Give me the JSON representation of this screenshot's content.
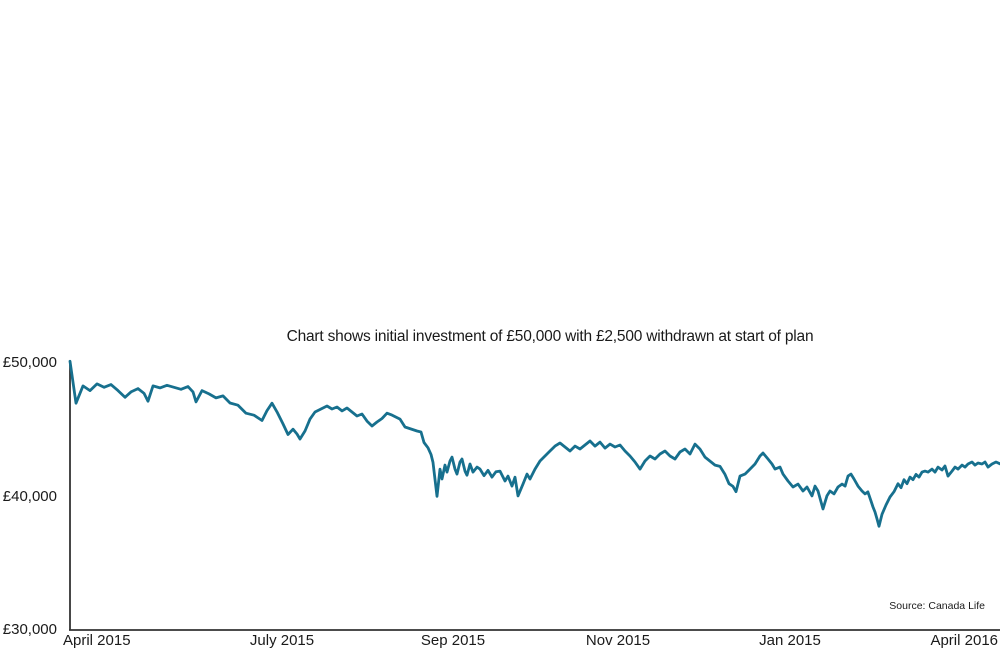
{
  "chart_data": {
    "type": "line",
    "title": "Chart shows initial investment of £50,000 with £2,500 withdrawn at start of plan",
    "source": "Source: Canada Life",
    "x_ticks": [
      "April 2015",
      "July 2015",
      "Sep 2015",
      "Nov 2015",
      "Jan 2015",
      "April 2016"
    ],
    "y_ticks": [
      "£50,000",
      "£40,000",
      "£30,000"
    ],
    "y_tick_values": [
      50000,
      40000,
      30000
    ],
    "ylim": [
      30000,
      50000
    ],
    "x_range": [
      "April 2015",
      "April 2016"
    ],
    "grid": false,
    "legend": "none",
    "line_color": "#17708e",
    "axis_color": "#333333",
    "text_color": "#1a1a1a",
    "series": [
      {
        "points": [
          [
            0.0,
            50200
          ],
          [
            0.0065,
            47050
          ],
          [
            0.014,
            48350
          ],
          [
            0.0215,
            48000
          ],
          [
            0.029,
            48500
          ],
          [
            0.0366,
            48250
          ],
          [
            0.0441,
            48450
          ],
          [
            0.0516,
            48000
          ],
          [
            0.0591,
            47500
          ],
          [
            0.0656,
            47900
          ],
          [
            0.0731,
            48150
          ],
          [
            0.0796,
            47800
          ],
          [
            0.0839,
            47200
          ],
          [
            0.0892,
            48350
          ],
          [
            0.0968,
            48200
          ],
          [
            0.1043,
            48400
          ],
          [
            0.1118,
            48250
          ],
          [
            0.1194,
            48100
          ],
          [
            0.1269,
            48300
          ],
          [
            0.1323,
            47900
          ],
          [
            0.1355,
            47150
          ],
          [
            0.1419,
            48000
          ],
          [
            0.1495,
            47750
          ],
          [
            0.157,
            47450
          ],
          [
            0.1645,
            47600
          ],
          [
            0.172,
            47070
          ],
          [
            0.1806,
            46900
          ],
          [
            0.1892,
            46300
          ],
          [
            0.1978,
            46150
          ],
          [
            0.2065,
            45750
          ],
          [
            0.2118,
            46500
          ],
          [
            0.2172,
            47050
          ],
          [
            0.2226,
            46400
          ],
          [
            0.229,
            45500
          ],
          [
            0.2344,
            44700
          ],
          [
            0.2398,
            45100
          ],
          [
            0.2441,
            44740
          ],
          [
            0.2473,
            44360
          ],
          [
            0.2527,
            44960
          ],
          [
            0.2581,
            45860
          ],
          [
            0.2634,
            46390
          ],
          [
            0.2699,
            46620
          ],
          [
            0.2763,
            46840
          ],
          [
            0.2817,
            46620
          ],
          [
            0.2871,
            46770
          ],
          [
            0.2925,
            46470
          ],
          [
            0.2978,
            46690
          ],
          [
            0.3032,
            46390
          ],
          [
            0.3086,
            46090
          ],
          [
            0.314,
            46240
          ],
          [
            0.3194,
            45710
          ],
          [
            0.3247,
            45340
          ],
          [
            0.3301,
            45640
          ],
          [
            0.3355,
            45900
          ],
          [
            0.3409,
            46300
          ],
          [
            0.3462,
            46160
          ],
          [
            0.3505,
            46010
          ],
          [
            0.3548,
            45860
          ],
          [
            0.3602,
            45260
          ],
          [
            0.3667,
            45110
          ],
          [
            0.3731,
            44960
          ],
          [
            0.3774,
            44890
          ],
          [
            0.3806,
            44100
          ],
          [
            0.3849,
            43700
          ],
          [
            0.3882,
            43200
          ],
          [
            0.3903,
            42600
          ],
          [
            0.3946,
            40050
          ],
          [
            0.3978,
            42100
          ],
          [
            0.4,
            41350
          ],
          [
            0.4032,
            42400
          ],
          [
            0.4054,
            41870
          ],
          [
            0.4086,
            42710
          ],
          [
            0.4108,
            43000
          ],
          [
            0.414,
            42100
          ],
          [
            0.4161,
            41720
          ],
          [
            0.4194,
            42630
          ],
          [
            0.4215,
            42860
          ],
          [
            0.4247,
            41950
          ],
          [
            0.4269,
            41640
          ],
          [
            0.4301,
            42480
          ],
          [
            0.4333,
            41870
          ],
          [
            0.4376,
            42250
          ],
          [
            0.4409,
            42100
          ],
          [
            0.4452,
            41600
          ],
          [
            0.4495,
            42000
          ],
          [
            0.4538,
            41500
          ],
          [
            0.4581,
            41900
          ],
          [
            0.4624,
            41950
          ],
          [
            0.4677,
            41200
          ],
          [
            0.471,
            41570
          ],
          [
            0.4753,
            40820
          ],
          [
            0.4785,
            41490
          ],
          [
            0.4817,
            40080
          ],
          [
            0.4871,
            40970
          ],
          [
            0.4914,
            41720
          ],
          [
            0.4946,
            41350
          ],
          [
            0.5,
            42100
          ],
          [
            0.5054,
            42710
          ],
          [
            0.5108,
            43080
          ],
          [
            0.5161,
            43460
          ],
          [
            0.5215,
            43830
          ],
          [
            0.5269,
            44060
          ],
          [
            0.5323,
            43760
          ],
          [
            0.5376,
            43460
          ],
          [
            0.543,
            43830
          ],
          [
            0.5484,
            43610
          ],
          [
            0.5538,
            43910
          ],
          [
            0.5591,
            44210
          ],
          [
            0.5645,
            43830
          ],
          [
            0.5699,
            44130
          ],
          [
            0.5753,
            43680
          ],
          [
            0.5806,
            43980
          ],
          [
            0.586,
            43760
          ],
          [
            0.5914,
            43910
          ],
          [
            0.5968,
            43460
          ],
          [
            0.6022,
            43080
          ],
          [
            0.6075,
            42630
          ],
          [
            0.6129,
            42100
          ],
          [
            0.6183,
            42710
          ],
          [
            0.6237,
            43080
          ],
          [
            0.629,
            42860
          ],
          [
            0.6344,
            43230
          ],
          [
            0.6398,
            43460
          ],
          [
            0.6452,
            43080
          ],
          [
            0.6505,
            42860
          ],
          [
            0.6559,
            43380
          ],
          [
            0.6613,
            43610
          ],
          [
            0.6667,
            43230
          ],
          [
            0.672,
            43980
          ],
          [
            0.6774,
            43600
          ],
          [
            0.6828,
            43000
          ],
          [
            0.6882,
            42700
          ],
          [
            0.6935,
            42400
          ],
          [
            0.6989,
            42300
          ],
          [
            0.7043,
            41700
          ],
          [
            0.7086,
            41000
          ],
          [
            0.7129,
            40800
          ],
          [
            0.7161,
            40400
          ],
          [
            0.7204,
            41570
          ],
          [
            0.7258,
            41720
          ],
          [
            0.7312,
            42100
          ],
          [
            0.7366,
            42480
          ],
          [
            0.7419,
            43080
          ],
          [
            0.7452,
            43310
          ],
          [
            0.7505,
            42860
          ],
          [
            0.7548,
            42480
          ],
          [
            0.7581,
            42100
          ],
          [
            0.7634,
            42250
          ],
          [
            0.7667,
            41720
          ],
          [
            0.772,
            41200
          ],
          [
            0.7774,
            40750
          ],
          [
            0.7828,
            40970
          ],
          [
            0.7882,
            40450
          ],
          [
            0.7925,
            40750
          ],
          [
            0.7978,
            40080
          ],
          [
            0.8011,
            40820
          ],
          [
            0.8043,
            40450
          ],
          [
            0.8097,
            39100
          ],
          [
            0.814,
            40100
          ],
          [
            0.8172,
            40450
          ],
          [
            0.8215,
            40230
          ],
          [
            0.8258,
            40750
          ],
          [
            0.8301,
            40970
          ],
          [
            0.8334,
            40820
          ],
          [
            0.8366,
            41570
          ],
          [
            0.8398,
            41720
          ],
          [
            0.843,
            41350
          ],
          [
            0.8473,
            40820
          ],
          [
            0.8516,
            40450
          ],
          [
            0.8548,
            40230
          ],
          [
            0.858,
            40380
          ],
          [
            0.8613,
            39700
          ],
          [
            0.8634,
            39250
          ],
          [
            0.8656,
            38870
          ],
          [
            0.8677,
            38350
          ],
          [
            0.8699,
            37800
          ],
          [
            0.8731,
            38700
          ],
          [
            0.8774,
            39400
          ],
          [
            0.8817,
            40000
          ],
          [
            0.886,
            40400
          ],
          [
            0.8903,
            41000
          ],
          [
            0.8935,
            40700
          ],
          [
            0.8968,
            41300
          ],
          [
            0.9,
            41000
          ],
          [
            0.9032,
            41500
          ],
          [
            0.9065,
            41300
          ],
          [
            0.9097,
            41700
          ],
          [
            0.9129,
            41500
          ],
          [
            0.9161,
            41870
          ],
          [
            0.9194,
            41950
          ],
          [
            0.9226,
            41870
          ],
          [
            0.9269,
            42100
          ],
          [
            0.9301,
            41870
          ],
          [
            0.9333,
            42250
          ],
          [
            0.9376,
            42030
          ],
          [
            0.9409,
            42330
          ],
          [
            0.9441,
            41570
          ],
          [
            0.9484,
            41950
          ],
          [
            0.9516,
            42250
          ],
          [
            0.9548,
            42100
          ],
          [
            0.9591,
            42400
          ],
          [
            0.9624,
            42250
          ],
          [
            0.9656,
            42480
          ],
          [
            0.9699,
            42630
          ],
          [
            0.9731,
            42400
          ],
          [
            0.9763,
            42560
          ],
          [
            0.9806,
            42480
          ],
          [
            0.9839,
            42630
          ],
          [
            0.9871,
            42250
          ],
          [
            0.9914,
            42480
          ],
          [
            0.9957,
            42630
          ],
          [
            1.0,
            42500
          ]
        ]
      }
    ]
  }
}
